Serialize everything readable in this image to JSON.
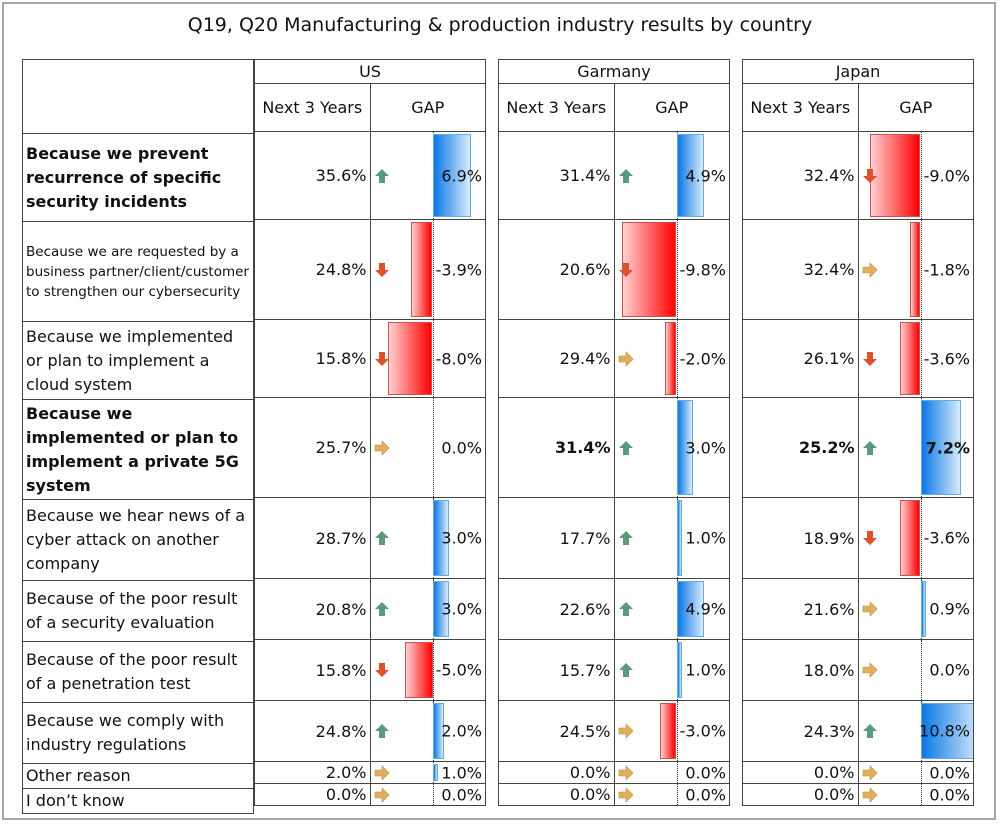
{
  "title": "Q19, Q20 Manufacturing & production industry results by country",
  "columns": {
    "next": "Next 3 Years",
    "gap": "GAP"
  },
  "colors": {
    "positive": "#0a78e6",
    "negative": "#ff0000",
    "up_arrow": "#5a9a7a",
    "down_arrow": "#d9542c",
    "flat_arrow": "#e0b060"
  },
  "chart_data": {
    "type": "table",
    "title": "Q19, Q20 Manufacturing & production industry results by country",
    "countries": [
      "US",
      "Garmany",
      "Japan"
    ],
    "metrics": [
      "Next 3 Years",
      "GAP"
    ],
    "gap_scale_max": 11,
    "rows": [
      {
        "label": "Because we prevent recurrence of specific security incidents",
        "style": "bold",
        "US": {
          "next": "35.6%",
          "gap": "6.9%",
          "gap_value": 6.9,
          "arrow": "up"
        },
        "Garmany": {
          "next": "31.4%",
          "gap": "4.9%",
          "gap_value": 4.9,
          "arrow": "up"
        },
        "Japan": {
          "next": "32.4%",
          "gap": "-9.0%",
          "gap_value": -9.0,
          "arrow": "down"
        }
      },
      {
        "label": "Because we are requested by a business partner/client/customer to strengthen our cybersecurity",
        "style": "small",
        "US": {
          "next": "24.8%",
          "gap": "-3.9%",
          "gap_value": -3.9,
          "arrow": "down"
        },
        "Garmany": {
          "next": "20.6%",
          "gap": "-9.8%",
          "gap_value": -9.8,
          "arrow": "down"
        },
        "Japan": {
          "next": "32.4%",
          "gap": "-1.8%",
          "gap_value": -1.8,
          "arrow": "flat"
        }
      },
      {
        "label": "Because we implemented or plan to implement a cloud system",
        "style": "normal",
        "US": {
          "next": "15.8%",
          "gap": "-8.0%",
          "gap_value": -8.0,
          "arrow": "down"
        },
        "Garmany": {
          "next": "29.4%",
          "gap": "-2.0%",
          "gap_value": -2.0,
          "arrow": "flat"
        },
        "Japan": {
          "next": "26.1%",
          "gap": "-3.6%",
          "gap_value": -3.6,
          "arrow": "down"
        }
      },
      {
        "label": "Because we implemented or plan to implement a private 5G system",
        "style": "bold",
        "US": {
          "next": "25.7%",
          "gap": "0.0%",
          "gap_value": 0.0,
          "arrow": "flat",
          "bold": false
        },
        "Garmany": {
          "next": "31.4%",
          "gap": "3.0%",
          "gap_value": 3.0,
          "arrow": "up",
          "bold": true,
          "gap_bold": false
        },
        "Japan": {
          "next": "25.2%",
          "gap": "7.2%",
          "gap_value": 7.2,
          "arrow": "up",
          "bold": true,
          "gap_bold": true
        }
      },
      {
        "label": "Because we hear news of a cyber attack on another company",
        "style": "normal",
        "US": {
          "next": "28.7%",
          "gap": "3.0%",
          "gap_value": 3.0,
          "arrow": "up"
        },
        "Garmany": {
          "next": "17.7%",
          "gap": "1.0%",
          "gap_value": 1.0,
          "arrow": "up"
        },
        "Japan": {
          "next": "18.9%",
          "gap": "-3.6%",
          "gap_value": -3.6,
          "arrow": "down"
        }
      },
      {
        "label": "Because of the poor result of a security evaluation",
        "style": "normal",
        "US": {
          "next": "20.8%",
          "gap": "3.0%",
          "gap_value": 3.0,
          "arrow": "up"
        },
        "Garmany": {
          "next": "22.6%",
          "gap": "4.9%",
          "gap_value": 4.9,
          "arrow": "up"
        },
        "Japan": {
          "next": "21.6%",
          "gap": "0.9%",
          "gap_value": 0.9,
          "arrow": "flat"
        }
      },
      {
        "label": "Because of the poor result of a penetration test",
        "style": "normal",
        "US": {
          "next": "15.8%",
          "gap": "-5.0%",
          "gap_value": -5.0,
          "arrow": "down"
        },
        "Garmany": {
          "next": "15.7%",
          "gap": "1.0%",
          "gap_value": 1.0,
          "arrow": "up"
        },
        "Japan": {
          "next": "18.0%",
          "gap": "0.0%",
          "gap_value": 0.0,
          "arrow": "flat"
        }
      },
      {
        "label": "Because we comply with industry regulations",
        "style": "normal",
        "US": {
          "next": "24.8%",
          "gap": "2.0%",
          "gap_value": 2.0,
          "arrow": "up"
        },
        "Garmany": {
          "next": "24.5%",
          "gap": "-3.0%",
          "gap_value": -3.0,
          "arrow": "flat"
        },
        "Japan": {
          "next": "24.3%",
          "gap": "10.8%",
          "gap_value": 10.8,
          "arrow": "up"
        }
      },
      {
        "label": "Other reason",
        "style": "normal",
        "US": {
          "next": "2.0%",
          "gap": "1.0%",
          "gap_value": 1.0,
          "arrow": "flat"
        },
        "Garmany": {
          "next": "0.0%",
          "gap": "0.0%",
          "gap_value": 0.0,
          "arrow": "flat"
        },
        "Japan": {
          "next": "0.0%",
          "gap": "0.0%",
          "gap_value": 0.0,
          "arrow": "flat"
        }
      },
      {
        "label": "I don’t know",
        "style": "normal",
        "US": {
          "next": "0.0%",
          "gap": "0.0%",
          "gap_value": 0.0,
          "arrow": "flat"
        },
        "Garmany": {
          "next": "0.0%",
          "gap": "0.0%",
          "gap_value": 0.0,
          "arrow": "flat"
        },
        "Japan": {
          "next": "0.0%",
          "gap": "0.0%",
          "gap_value": 0.0,
          "arrow": "flat"
        }
      }
    ]
  }
}
